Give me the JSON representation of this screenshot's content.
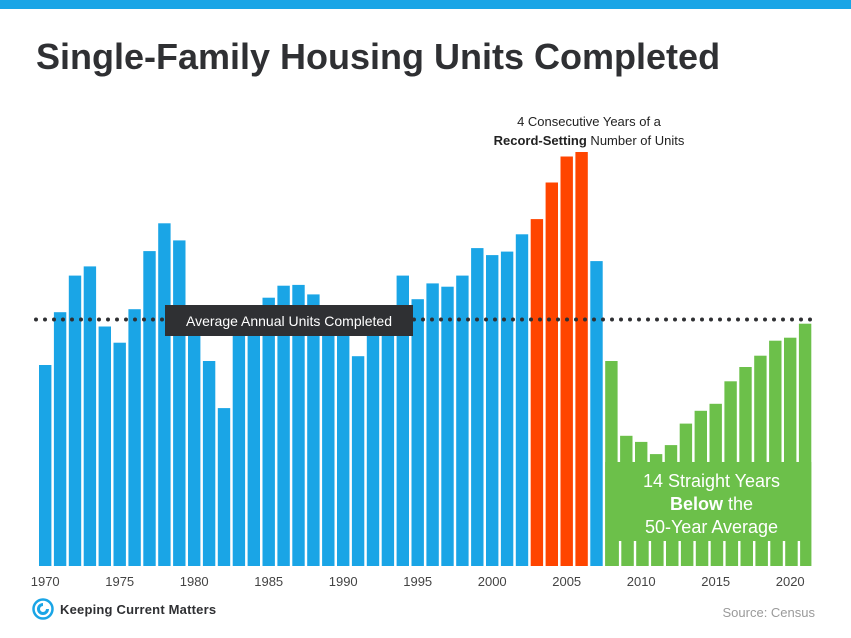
{
  "title": "Single-Family Housing Units Completed",
  "record_note": {
    "line1": "4 Consecutive Years of a",
    "bold": "Record-Setting",
    "rest": " Number of Units"
  },
  "average_label": "Average Annual Units Completed",
  "below_note": {
    "line1": "14 Straight Years",
    "bold": "Below",
    "line2_rest": " the",
    "line3": "50-Year Average"
  },
  "logo": {
    "text": "Keeping Current Matters"
  },
  "source": "Source: Census",
  "colors": {
    "band": "#1aa5e6",
    "blue": "#1aa5e6",
    "red": "#ff4500",
    "green": "#6cc04a",
    "title": "#2f3033",
    "avg_box": "#2f3033"
  },
  "chart_data": {
    "type": "bar",
    "title": "Single-Family Housing Units Completed",
    "xlabel": "",
    "ylabel": "",
    "x_tick_labels": [
      "1970",
      "1975",
      "1980",
      "1985",
      "1990",
      "1995",
      "2000",
      "2005",
      "2010",
      "2015",
      "2020"
    ],
    "grid": false,
    "years": [
      1970,
      1971,
      1972,
      1973,
      1974,
      1975,
      1976,
      1977,
      1978,
      1979,
      1980,
      1981,
      1982,
      1983,
      1984,
      1985,
      1986,
      1987,
      1988,
      1989,
      1990,
      1991,
      1992,
      1993,
      1994,
      1995,
      1996,
      1997,
      1998,
      1999,
      2000,
      2001,
      2002,
      2003,
      2004,
      2005,
      2006,
      2007,
      2008,
      2009,
      2010,
      2011,
      2012,
      2013,
      2014,
      2015,
      2016,
      2017,
      2018,
      2019,
      2020,
      2021
    ],
    "values": [
      803,
      1014,
      1160,
      1197,
      957,
      892,
      1026,
      1258,
      1369,
      1301,
      957,
      819,
      631,
      924,
      1025,
      1072,
      1120,
      1123,
      1085,
      1026,
      966,
      838,
      964,
      1039,
      1160,
      1066,
      1129,
      1116,
      1160,
      1270,
      1242,
      1256,
      1325,
      1386,
      1532,
      1636,
      1654,
      1218,
      819,
      520,
      496,
      447,
      483,
      569,
      620,
      648,
      738,
      795,
      840,
      900,
      912,
      968
    ],
    "series": [
      {
        "label": "Record-setting years",
        "years": [
          2003,
          2004,
          2005,
          2006
        ],
        "color": "#ff4500"
      },
      {
        "label": "Below the 50-year average",
        "years": [
          2008,
          2009,
          2010,
          2011,
          2012,
          2013,
          2014,
          2015,
          2016,
          2017,
          2018,
          2019,
          2020,
          2021
        ],
        "color": "#6cc04a"
      }
    ],
    "average_value": 985,
    "ylim": [
      0,
      1700
    ]
  }
}
